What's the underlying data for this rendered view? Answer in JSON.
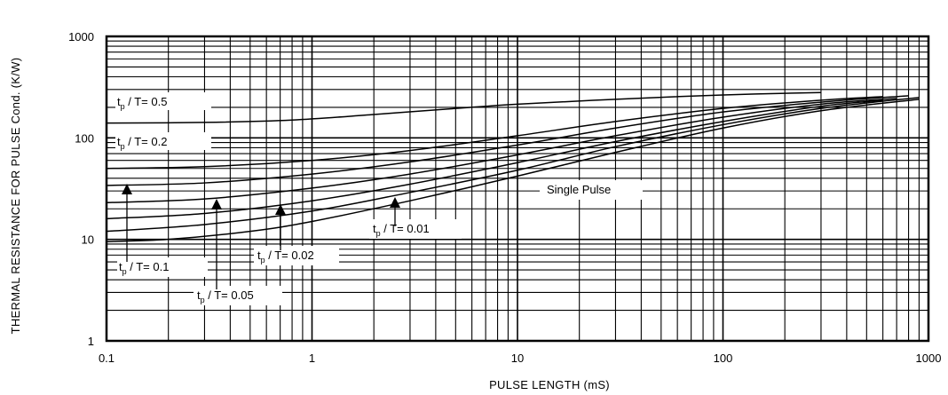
{
  "chart_data": {
    "type": "line",
    "xscale": "log",
    "yscale": "log",
    "xlim": [
      0.1,
      1000
    ],
    "ylim": [
      1,
      1000
    ],
    "xlabel": "PULSE LENGTH (mS)",
    "ylabel": "THERMAL RESISTANCE FOR PULSE Cond. (K/W)",
    "grid": true,
    "x_ticks": [
      {
        "value": 0.1,
        "label": "0.1"
      },
      {
        "value": 1,
        "label": "1"
      },
      {
        "value": 10,
        "label": "10"
      },
      {
        "value": 100,
        "label": "100"
      },
      {
        "value": 1000,
        "label": "1000"
      }
    ],
    "y_ticks": [
      {
        "value": 1,
        "label": "1"
      },
      {
        "value": 10,
        "label": "10"
      },
      {
        "value": 100,
        "label": "100"
      },
      {
        "value": 1000,
        "label": "1000"
      }
    ],
    "series": [
      {
        "x": [
          0.1,
          0.3,
          0.8,
          2,
          5,
          10,
          30,
          100,
          300
        ],
        "values": [
          140,
          142,
          150,
          170,
          195,
          215,
          240,
          265,
          280
        ]
      },
      {
        "x": [
          0.1,
          0.3,
          1,
          3,
          10,
          30,
          100,
          300,
          600
        ],
        "values": [
          50,
          52,
          60,
          75,
          105,
          145,
          195,
          235,
          255
        ]
      },
      {
        "x": [
          0.1,
          0.3,
          1,
          3,
          10,
          30,
          100,
          300,
          800
        ],
        "values": [
          34,
          36,
          44,
          58,
          85,
          125,
          180,
          225,
          260
        ]
      },
      {
        "x": [
          0.1,
          0.3,
          1,
          3,
          10,
          30,
          100,
          300,
          700
        ],
        "values": [
          23,
          25,
          32,
          44,
          68,
          105,
          160,
          215,
          245
        ]
      },
      {
        "x": [
          0.1,
          0.3,
          1,
          3,
          10,
          30,
          100,
          300,
          600
        ],
        "values": [
          16,
          18,
          24,
          35,
          57,
          92,
          145,
          205,
          235
        ]
      },
      {
        "x": [
          0.1,
          0.3,
          1,
          3,
          10,
          30,
          100,
          300,
          900
        ],
        "values": [
          12,
          14,
          19,
          29,
          48,
          82,
          135,
          195,
          250
        ]
      },
      {
        "x": [
          0.1,
          0.2,
          0.5,
          1,
          3,
          10,
          30,
          100,
          300,
          900
        ],
        "values": [
          9.5,
          10,
          12,
          15,
          24,
          42,
          72,
          125,
          185,
          240
        ]
      }
    ],
    "annotations": [
      {
        "text": "t",
        "sub": "p",
        "rest": " / T= 0.5"
      },
      {
        "text": "t",
        "sub": "p",
        "rest": " / T= 0.2"
      },
      {
        "text": "t",
        "sub": "p",
        "rest": " / T= 0.1"
      },
      {
        "text": "t",
        "sub": "p",
        "rest": " / T= 0.05"
      },
      {
        "text": "t",
        "sub": "p",
        "rest": " / T= 0.02"
      },
      {
        "text": "t",
        "sub": "p",
        "rest": " / T= 0.01"
      },
      {
        "text": "Single Pulse"
      }
    ]
  }
}
